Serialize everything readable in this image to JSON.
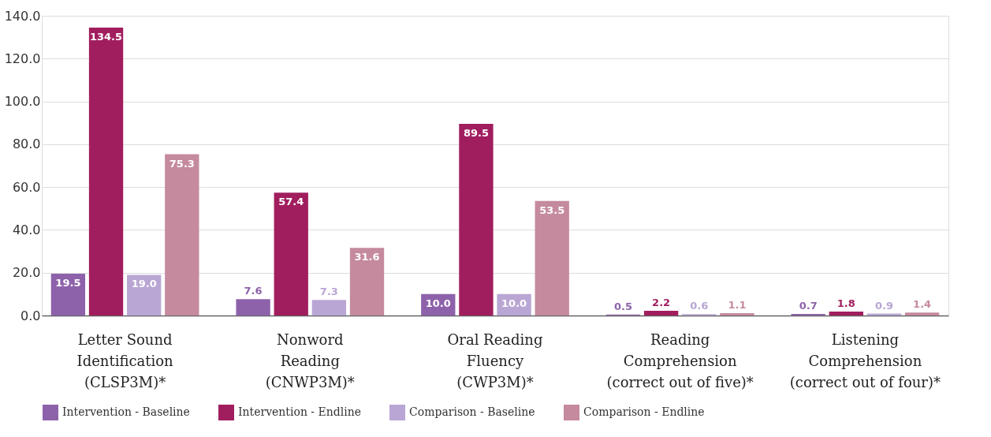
{
  "chart_data": {
    "type": "bar",
    "categories": [
      "Letter Sound Identification (CLSP3M)*",
      "Nonword Reading (CNWP3M)*",
      "Oral Reading Fluency (CWP3M)*",
      "Reading Comprehension (correct out of five)*",
      "Listening Comprehension (correct out of four)*"
    ],
    "series": [
      {
        "name": "Intervention - Baseline",
        "color": "#8e62ab",
        "values": [
          19.5,
          7.6,
          10.0,
          0.5,
          0.7
        ],
        "value_labels": [
          "19.5",
          "7.6",
          "10.0",
          "0.5",
          "0.7"
        ]
      },
      {
        "name": "Intervention - Endline",
        "color": "#a11e5e",
        "values": [
          134.5,
          57.4,
          89.5,
          2.2,
          1.8
        ],
        "value_labels": [
          "134.5",
          "57.4",
          "89.5",
          "2.2",
          "1.8"
        ]
      },
      {
        "name": "Comparison - Baseline",
        "color": "#b9a6d4",
        "values": [
          19.0,
          7.3,
          10.0,
          0.6,
          0.9
        ],
        "value_labels": [
          "19.0",
          "7.3",
          "10.0",
          "0.6",
          "0.9"
        ]
      },
      {
        "name": "Comparison - Endline",
        "color": "#c58a9d",
        "values": [
          75.3,
          31.6,
          53.5,
          1.1,
          1.4
        ],
        "value_labels": [
          "75.3",
          "31.6",
          "53.5",
          "1.1",
          "1.4"
        ]
      }
    ],
    "ylim": [
      0,
      140
    ],
    "yticks": [
      {
        "value": 0,
        "label": "0.0"
      },
      {
        "value": 20,
        "label": "20.0"
      },
      {
        "value": 40,
        "label": "40.0"
      },
      {
        "value": 60,
        "label": "60.0"
      },
      {
        "value": 80,
        "label": "80.0"
      },
      {
        "value": 100,
        "label": "100.0"
      },
      {
        "value": 120,
        "label": "120.0"
      },
      {
        "value": 140,
        "label": "140.0"
      }
    ],
    "grid": "y",
    "legend": "bottom"
  }
}
